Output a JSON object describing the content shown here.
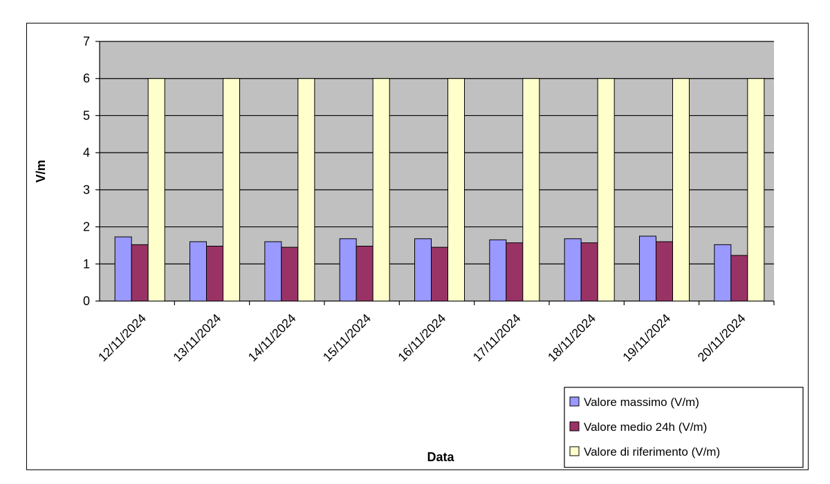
{
  "chart_data": {
    "type": "bar",
    "title": "",
    "xlabel": "Data",
    "ylabel": "V/m",
    "ylim": [
      0,
      7
    ],
    "yticks": [
      0,
      1,
      2,
      3,
      4,
      5,
      6,
      7
    ],
    "grid": true,
    "legend_position": "bottom-right",
    "categories": [
      "12/11/2024",
      "13/11/2024",
      "14/11/2024",
      "15/11/2024",
      "16/11/2024",
      "17/11/2024",
      "18/11/2024",
      "19/11/2024",
      "20/11/2024"
    ],
    "series": [
      {
        "name": "Valore massimo (V/m)",
        "color": "#9999ff",
        "values": [
          1.73,
          1.6,
          1.6,
          1.68,
          1.68,
          1.65,
          1.68,
          1.75,
          1.52
        ]
      },
      {
        "name": "Valore medio 24h (V/m)",
        "color": "#993366",
        "values": [
          1.52,
          1.48,
          1.45,
          1.48,
          1.45,
          1.57,
          1.57,
          1.6,
          1.23
        ]
      },
      {
        "name": "Valore di riferimento (V/m)",
        "color": "#ffffcc",
        "values": [
          6,
          6,
          6,
          6,
          6,
          6,
          6,
          6,
          6
        ]
      }
    ],
    "plot_background": "#c0c0c0"
  }
}
